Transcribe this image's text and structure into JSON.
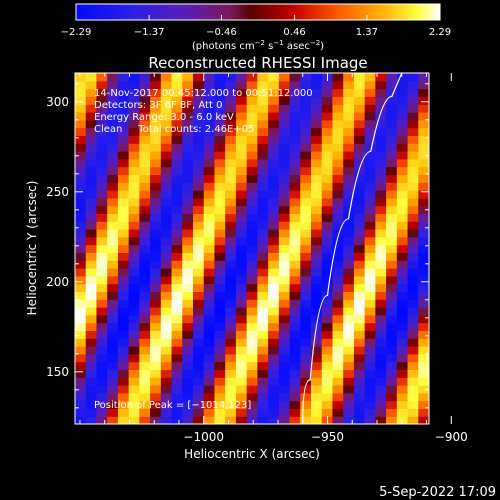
{
  "chart_data": {
    "type": "heatmap",
    "title": "Reconstructed RHESSI Image",
    "xlabel": "Heliocentric X (arcsec)",
    "ylabel": "Heliocentric Y (arcsec)",
    "xlim": [
      -1052,
      -909
    ],
    "ylim": [
      121,
      316
    ],
    "x_ticks": [
      -1000,
      -950,
      -900
    ],
    "x_tick_labels": [
      "−1000",
      "−950",
      "−900"
    ],
    "y_ticks": [
      150,
      200,
      250,
      300
    ],
    "y_tick_labels": [
      "150",
      "200",
      "250",
      "300"
    ],
    "colorbar": {
      "range": [
        -2.29,
        2.29
      ],
      "ticks": [
        -2.29,
        -1.37,
        -0.46,
        0.46,
        1.37,
        2.29
      ],
      "tick_labels": [
        "−2.29",
        "−1.37",
        "−0.46",
        "0.46",
        "1.37",
        "2.29"
      ],
      "colormap": "RHESSI flame (blue-purple-red-orange-yellow-white)",
      "unit_label": {
        "pre": "(photons cm",
        "sup1": "−2",
        "mid1": " s",
        "sup2": "−1",
        "mid2": " asec",
        "sup3": "−2",
        "post": ")"
      }
    },
    "annotations": [
      "14-Nov-2017 00:45:12.000 to 00:51:12.000",
      "Detectors: 3F 6F 8F, Att 0",
      "Energy Range: 3.0 - 6.0 keV",
      "Clean     Total counts: 2.46E+05"
    ],
    "peak_label": "Position of Peak = [−1014,123]",
    "peak_position": [
      -1014,
      123
    ],
    "limb_curve": [
      [
        -960,
        121
      ],
      [
        -954,
        170
      ],
      [
        -946,
        215
      ],
      [
        -937,
        255
      ],
      [
        -928,
        290
      ],
      [
        -920,
        316
      ]
    ],
    "grid_size": [
      33,
      45
    ],
    "pattern": {
      "stripe_tilt_x_per_y": 0.3,
      "stripe_period_arcsec": 37,
      "bright_ridge_x_at_y121": [
        -1031,
        -994,
        -957,
        -920
      ],
      "peak_value": 2.29
    }
  },
  "footer_date": "5-Sep-2022 17:09",
  "colors": {
    "background": "#000000",
    "text": "#ffffff",
    "limb": "#ffffff"
  }
}
